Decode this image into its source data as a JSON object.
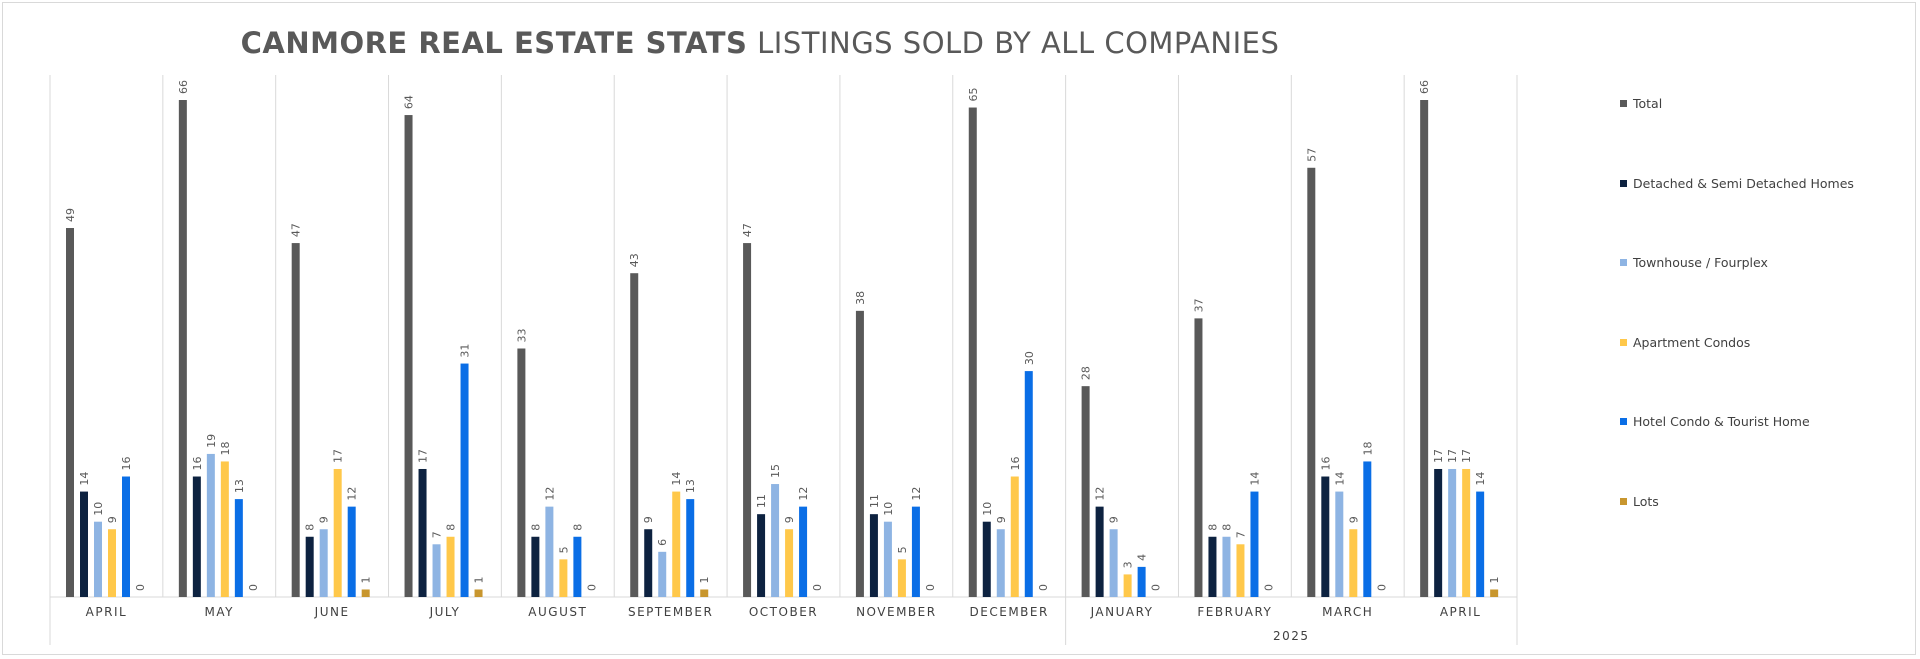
{
  "title_bold": "CANMORE REAL ESTATE STATS",
  "title_rest": "LISTINGS SOLD BY ALL COMPANIES",
  "chart_data": {
    "type": "bar",
    "title": "CANMORE REAL ESTATE STATS LISTINGS SOLD BY ALL COMPANIES",
    "categories": [
      "APRIL",
      "MAY",
      "JUNE",
      "JULY",
      "AUGUST",
      "SEPTEMBER",
      "OCTOBER",
      "NOVEMBER",
      "DECEMBER",
      "JANUARY",
      "FEBRUARY",
      "MARCH",
      "APRIL"
    ],
    "year_group": {
      "label": "2025",
      "start_index": 9,
      "end_index": 12
    },
    "ylim": [
      0,
      70
    ],
    "grid": false,
    "legend_position": "right",
    "series": [
      {
        "name": "Total",
        "color": "#595959",
        "values": [
          49,
          66,
          47,
          64,
          33,
          43,
          47,
          38,
          65,
          28,
          37,
          57,
          66
        ]
      },
      {
        "name": "Detached & Semi Detached Homes",
        "color": "#0d2240",
        "values": [
          14,
          16,
          8,
          17,
          8,
          9,
          11,
          11,
          10,
          12,
          8,
          16,
          17
        ]
      },
      {
        "name": "Townhouse / Fourplex",
        "color": "#8eb4e3",
        "values": [
          10,
          19,
          9,
          7,
          12,
          6,
          15,
          10,
          9,
          9,
          8,
          14,
          17
        ]
      },
      {
        "name": "Apartment Condos",
        "color": "#ffc84a",
        "values": [
          9,
          18,
          17,
          8,
          5,
          14,
          9,
          5,
          16,
          3,
          7,
          9,
          17
        ]
      },
      {
        "name": "Hotel Condo & Tourist Home",
        "color": "#0a6ee6",
        "values": [
          16,
          13,
          12,
          31,
          8,
          13,
          12,
          12,
          30,
          4,
          14,
          18,
          14
        ]
      },
      {
        "name": "Lots",
        "color": "#c8962e",
        "values": [
          0,
          0,
          1,
          1,
          0,
          1,
          0,
          0,
          0,
          0,
          0,
          0,
          1
        ]
      }
    ]
  }
}
